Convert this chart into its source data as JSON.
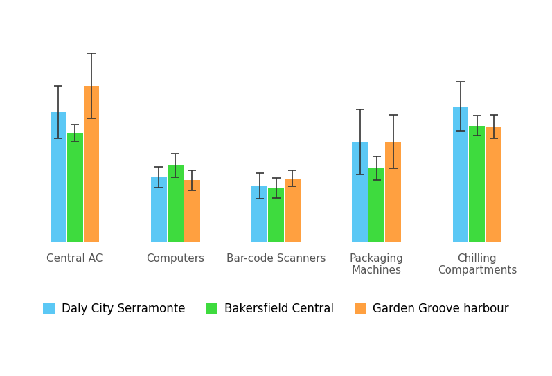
{
  "categories": [
    "Central AC",
    "Computers",
    "Bar-code Scanners",
    "Packaging\nMachines",
    "Chilling\nCompartments"
  ],
  "series": {
    "Daly City Serramonte": {
      "values": [
        220,
        110,
        95,
        170,
        230
      ],
      "errors": [
        45,
        18,
        22,
        55,
        42
      ],
      "color": "#5BC8F5"
    },
    "Bakersfield Central": {
      "values": [
        185,
        130,
        92,
        125,
        197
      ],
      "errors": [
        14,
        20,
        17,
        20,
        17
      ],
      "color": "#3EDB3E"
    },
    "Garden Groove harbour": {
      "values": [
        265,
        105,
        108,
        170,
        195
      ],
      "errors": [
        55,
        17,
        14,
        45,
        20
      ],
      "color": "#FFA040"
    }
  },
  "bar_width": 0.22,
  "background_color": "#ffffff",
  "grid_color": "#e8e8e8",
  "legend_fontsize": 12,
  "tick_label_fontsize": 11,
  "tick_label_color": "#555555",
  "ylim_max": 380
}
